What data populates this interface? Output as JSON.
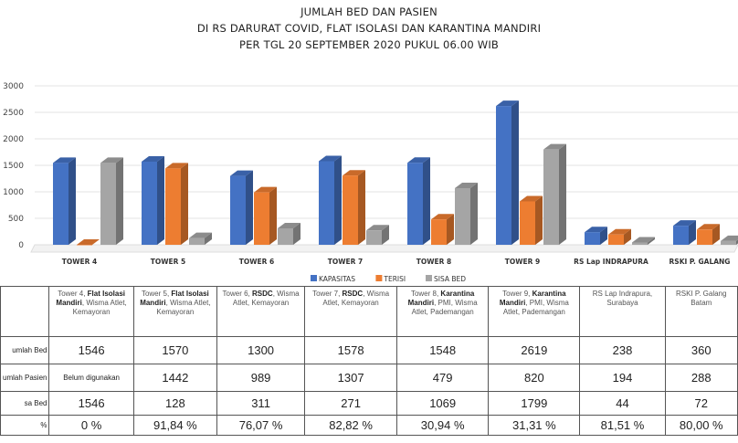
{
  "titles": {
    "line1": "JUMLAH BED DAN PASIEN",
    "line2": "DI RS DARURAT COVID, FLAT ISOLASI  DAN KARANTINA MANDIRI",
    "line3": "PER TGL 20 SEPTEMBER 2020 PUKUL 06.00 WIB"
  },
  "chart_data": {
    "type": "bar",
    "categories": [
      "TOWER 4",
      "TOWER 5",
      "TOWER 6",
      "TOWER 7",
      "TOWER 8",
      "TOWER 9",
      "RS Lap INDRAPURA",
      "RSKI P. GALANG"
    ],
    "series": [
      {
        "name": "KAPASITAS",
        "color": "#4472C4",
        "values": [
          1546,
          1570,
          1300,
          1578,
          1548,
          2619,
          238,
          360
        ]
      },
      {
        "name": "TERISI",
        "color": "#ED7D31",
        "values": [
          0,
          1442,
          989,
          1307,
          479,
          820,
          194,
          288
        ]
      },
      {
        "name": "SISA BED",
        "color": "#A5A5A5",
        "values": [
          1546,
          128,
          311,
          271,
          1069,
          1799,
          44,
          72
        ]
      }
    ],
    "yticks": [
      "0",
      "500",
      "1000",
      "1500",
      "2000",
      "2500",
      "3000"
    ],
    "ylim": [
      0,
      3000
    ],
    "legend_position": "bottom"
  },
  "table": {
    "columns": [
      {
        "prefix": "Tower 4, ",
        "bold": "Flat Isolasi Mandiri",
        "suffix": ", Wisma Atlet, Kemayoran"
      },
      {
        "prefix": "Tower 5, ",
        "bold": "Flat Isolasi Mandiri",
        "suffix": ", Wisma Atlet, Kemayoran"
      },
      {
        "prefix": "Tower 6, ",
        "bold": "RSDC",
        "suffix": ", Wisma Atlet, Kemayoran"
      },
      {
        "prefix": "Tower 7, ",
        "bold": "RSDC",
        "suffix": ", Wisma Atlet, Kemayoran"
      },
      {
        "prefix": "Tower 8, ",
        "bold": "Karantina Mandiri",
        "suffix": ", PMI, Wisma Atlet, Pademangan"
      },
      {
        "prefix": "Tower 9, ",
        "bold": "Karantina Mandiri",
        "suffix": ", PMI, Wisma Atlet, Pademangan"
      },
      {
        "prefix": "RS Lap Indrapura, Surabaya",
        "bold": "",
        "suffix": ""
      },
      {
        "prefix": "RSKI P. Galang Batam",
        "bold": "",
        "suffix": ""
      }
    ],
    "rows": [
      {
        "label": "umlah Bed",
        "values": [
          "1546",
          "1570",
          "1300",
          "1578",
          "1548",
          "2619",
          "238",
          "360"
        ]
      },
      {
        "label": "umlah Pasien",
        "values": [
          "Belum digunakan",
          "1442",
          "989",
          "1307",
          "479",
          "820",
          "194",
          "288"
        ]
      },
      {
        "label": "sa Bed",
        "values": [
          "1546",
          "128",
          "311",
          "271",
          "1069",
          "1799",
          "44",
          "72"
        ]
      },
      {
        "label": "%",
        "values": [
          "0 %",
          "91,84 %",
          "76,07 %",
          "82,82 %",
          "30,94 %",
          "31,31 %",
          "81,51 %",
          "80,00 %"
        ]
      }
    ]
  }
}
